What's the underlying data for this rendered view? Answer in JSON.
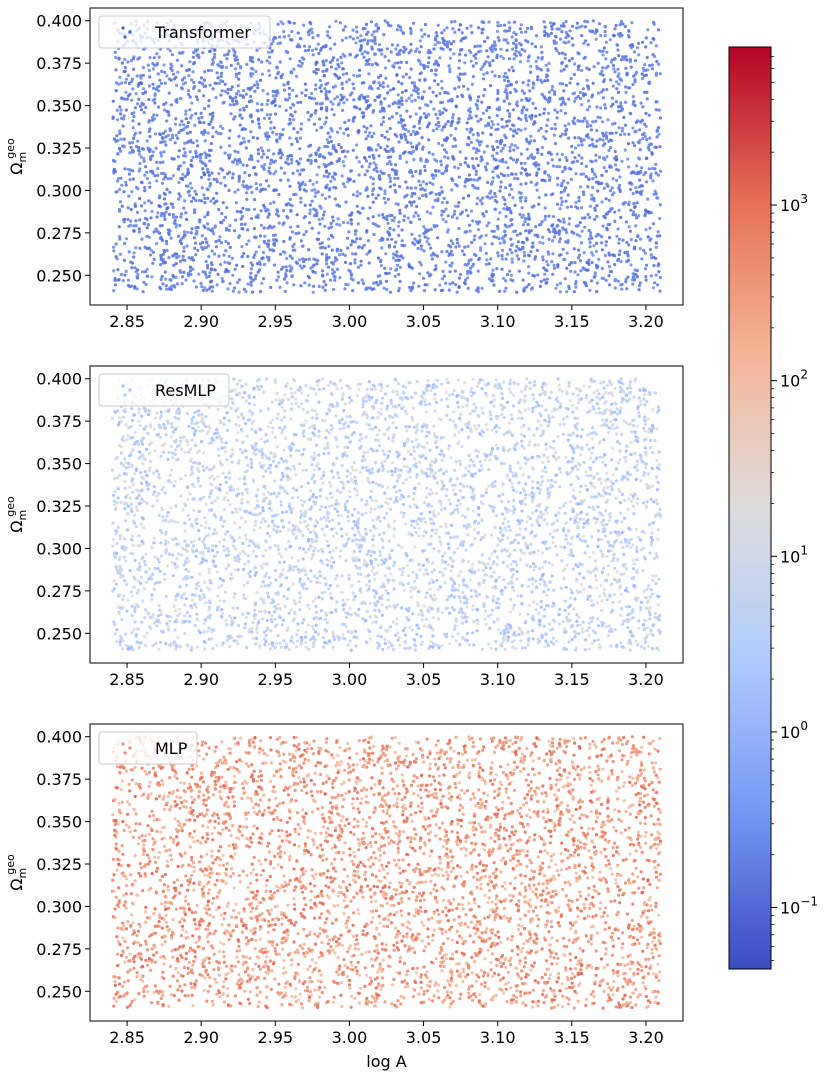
{
  "chart_data": [
    {
      "type": "scatter",
      "legend": "Transformer",
      "legend_location": "top-left",
      "ylabel_base": "Ω",
      "ylabel_sup": "geo",
      "ylabel_sub": "m",
      "xlabel": "",
      "xlim": [
        2.825,
        3.225
      ],
      "ylim": [
        0.2325,
        0.4075
      ],
      "x_ticks": [
        "2.85",
        "2.90",
        "2.95",
        "3.00",
        "3.05",
        "3.10",
        "3.15",
        "3.20"
      ],
      "y_ticks": [
        "0.250",
        "0.275",
        "0.300",
        "0.325",
        "0.350",
        "0.375",
        "0.400"
      ],
      "x_range": [
        2.84,
        3.21
      ],
      "y_range": [
        0.24,
        0.4
      ],
      "n_points": 4500,
      "seed": 11,
      "logvalue_range": [
        -1.05,
        -0.6
      ],
      "marker_color": "#3d5fd6"
    },
    {
      "type": "scatter",
      "legend": "ResMLP",
      "legend_location": "top-left",
      "ylabel_base": "Ω",
      "ylabel_sup": "geo",
      "ylabel_sub": "m",
      "xlabel": "",
      "xlim": [
        2.825,
        3.225
      ],
      "ylim": [
        0.2325,
        0.4075
      ],
      "x_ticks": [
        "2.85",
        "2.90",
        "2.95",
        "3.00",
        "3.05",
        "3.10",
        "3.15",
        "3.20"
      ],
      "y_ticks": [
        "0.250",
        "0.275",
        "0.300",
        "0.325",
        "0.350",
        "0.375",
        "0.400"
      ],
      "x_range": [
        2.84,
        3.21
      ],
      "y_range": [
        0.24,
        0.4
      ],
      "n_points": 4500,
      "seed": 23,
      "logvalue_range": [
        0.0,
        1.4
      ],
      "marker_color": "#a8c4f2"
    },
    {
      "type": "scatter",
      "legend": "MLP",
      "legend_location": "top-left",
      "ylabel_base": "Ω",
      "ylabel_sup": "geo",
      "ylabel_sub": "m",
      "xlabel": "log A",
      "xlim": [
        2.825,
        3.225
      ],
      "ylim": [
        0.2325,
        0.4075
      ],
      "x_ticks": [
        "2.85",
        "2.90",
        "2.95",
        "3.00",
        "3.05",
        "3.10",
        "3.15",
        "3.20"
      ],
      "y_ticks": [
        "0.250",
        "0.275",
        "0.300",
        "0.325",
        "0.350",
        "0.375",
        "0.400"
      ],
      "x_range": [
        2.84,
        3.21
      ],
      "y_range": [
        0.24,
        0.4
      ],
      "n_points": 4500,
      "seed": 37,
      "logvalue_range": [
        1.9,
        3.2
      ],
      "marker_color": "#e88a6a"
    }
  ],
  "colorbar": {
    "scale": "log",
    "colormap": "coolwarm",
    "range_log10": [
      -1.35,
      3.9
    ],
    "tick_labels": [
      {
        "exp": -1,
        "base": "10",
        "sup": "−1"
      },
      {
        "exp": 0,
        "base": "10",
        "sup": "0"
      },
      {
        "exp": 1,
        "base": "10",
        "sup": "1"
      },
      {
        "exp": 2,
        "base": "10",
        "sup": "2"
      },
      {
        "exp": 3,
        "base": "10",
        "sup": "3"
      }
    ],
    "colors": [
      "#3b4cc0",
      "#7396f5",
      "#b0cbfc",
      "#dddcdc",
      "#f5b598",
      "#e57058",
      "#b40426"
    ]
  }
}
